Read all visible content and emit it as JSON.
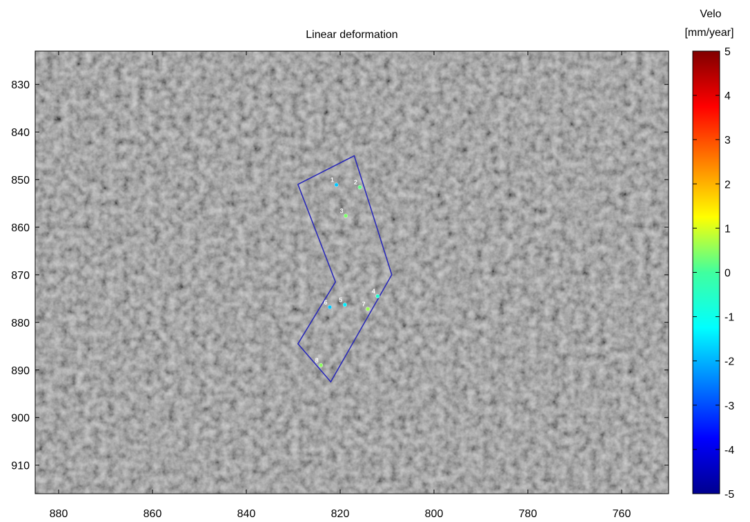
{
  "chart_data": {
    "type": "scatter",
    "title": "Linear deformation",
    "xlabel": "",
    "ylabel": "",
    "xlim": [
      885,
      750
    ],
    "ylim": [
      823,
      916
    ],
    "x_ticks": [
      880,
      860,
      840,
      820,
      800,
      780,
      760
    ],
    "y_ticks": [
      830,
      840,
      850,
      860,
      870,
      880,
      890,
      900,
      910
    ],
    "x_reversed": true,
    "y_reversed": true,
    "grid": false,
    "background": "grayscale radar amplitude image",
    "polygon": [
      [
        829,
        851
      ],
      [
        817,
        845
      ],
      [
        809,
        870
      ],
      [
        822,
        892.5
      ],
      [
        829,
        884.5
      ],
      [
        821,
        871.5
      ]
    ],
    "polygon_color": "#2a2ab8",
    "points": [
      {
        "label": "1",
        "x": 820.8,
        "y": 851.1,
        "value": -1.8
      },
      {
        "label": "2",
        "x": 815.8,
        "y": 851.6,
        "value": 0.2
      },
      {
        "label": "3",
        "x": 818.8,
        "y": 857.6,
        "value": 0.4
      },
      {
        "label": "4",
        "x": 812,
        "y": 874.5,
        "value": -0.6
      },
      {
        "label": "5",
        "x": 819,
        "y": 876.3,
        "value": -1.4
      },
      {
        "label": "6",
        "x": 822.2,
        "y": 876.8,
        "value": -1.8
      },
      {
        "label": "7",
        "x": 814.1,
        "y": 877.2,
        "value": 0.6
      },
      {
        "label": "8",
        "x": 824.1,
        "y": 889,
        "value": 0.5
      }
    ],
    "colorbar": {
      "title_line1": "Velo",
      "title_line2": "[mm/year]",
      "min": -5,
      "max": 5,
      "ticks": [
        5,
        4,
        3,
        2,
        1,
        0,
        -1,
        -2,
        -3,
        -4,
        -5
      ],
      "colormap": "jet"
    }
  }
}
